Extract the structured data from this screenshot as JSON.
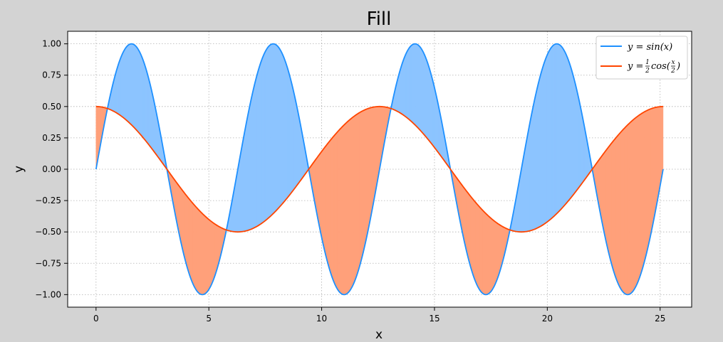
{
  "chart_data": {
    "type": "area",
    "title": "Fill",
    "xlabel": "x",
    "ylabel": "y",
    "xlim": [
      -1.2571,
      26.3982
    ],
    "ylim": [
      -1.1,
      1.1
    ],
    "xticks": [
      0,
      5,
      10,
      15,
      20,
      25
    ],
    "yticks": [
      -1.0,
      -0.75,
      -0.5,
      -0.25,
      0.0,
      0.25,
      0.5,
      0.75,
      1.0
    ],
    "xtick_labels": [
      "0",
      "5",
      "10",
      "15",
      "20",
      "25"
    ],
    "ytick_labels": [
      "−1.00",
      "−0.75",
      "−0.50",
      "−0.25",
      "0.00",
      "0.25",
      "0.50",
      "0.75",
      "1.00"
    ],
    "grid": true,
    "legend_position": "top-right",
    "x_range": [
      0,
      25.1327
    ],
    "series": [
      {
        "name": "y = sin(x)",
        "legend": {
          "lead": "y = ",
          "func": "sin(x)"
        },
        "function": "sin(x)",
        "color": "#1e90ff",
        "sample_points": [
          {
            "x": 0,
            "y": 0.0
          },
          {
            "x": 1.5708,
            "y": 1.0
          },
          {
            "x": 4.7124,
            "y": -1.0
          },
          {
            "x": 7.854,
            "y": 1.0
          },
          {
            "x": 10.9956,
            "y": -1.0
          },
          {
            "x": 14.1372,
            "y": 1.0
          },
          {
            "x": 17.2788,
            "y": -1.0
          },
          {
            "x": 20.4204,
            "y": 1.0
          },
          {
            "x": 23.5619,
            "y": -1.0
          },
          {
            "x": 25.1327,
            "y": 0.0
          }
        ]
      },
      {
        "name": "y = 1/2 cos(x/2)",
        "legend": {
          "lead": "y = ",
          "coef_num": "1",
          "coef_den": "2",
          "func": "cos(",
          "arg_num": "x",
          "arg_den": "2",
          "close": ")"
        },
        "function": "0.5*cos(x/2)",
        "color": "#ff4500",
        "sample_points": [
          {
            "x": 0,
            "y": 0.5
          },
          {
            "x": 3.1416,
            "y": 0.0
          },
          {
            "x": 6.2832,
            "y": -0.5
          },
          {
            "x": 9.4248,
            "y": 0.0
          },
          {
            "x": 12.5664,
            "y": 0.5
          },
          {
            "x": 15.708,
            "y": 0.0
          },
          {
            "x": 18.8496,
            "y": -0.5
          },
          {
            "x": 21.9911,
            "y": 0.0
          },
          {
            "x": 25.1327,
            "y": 0.5
          }
        ]
      }
    ],
    "fills": [
      {
        "where": "sin(x) >= 0.5*cos(x/2)",
        "color": "#8cc4ff"
      },
      {
        "where": "sin(x) < 0.5*cos(x/2)",
        "color": "#ffa07a"
      }
    ]
  }
}
